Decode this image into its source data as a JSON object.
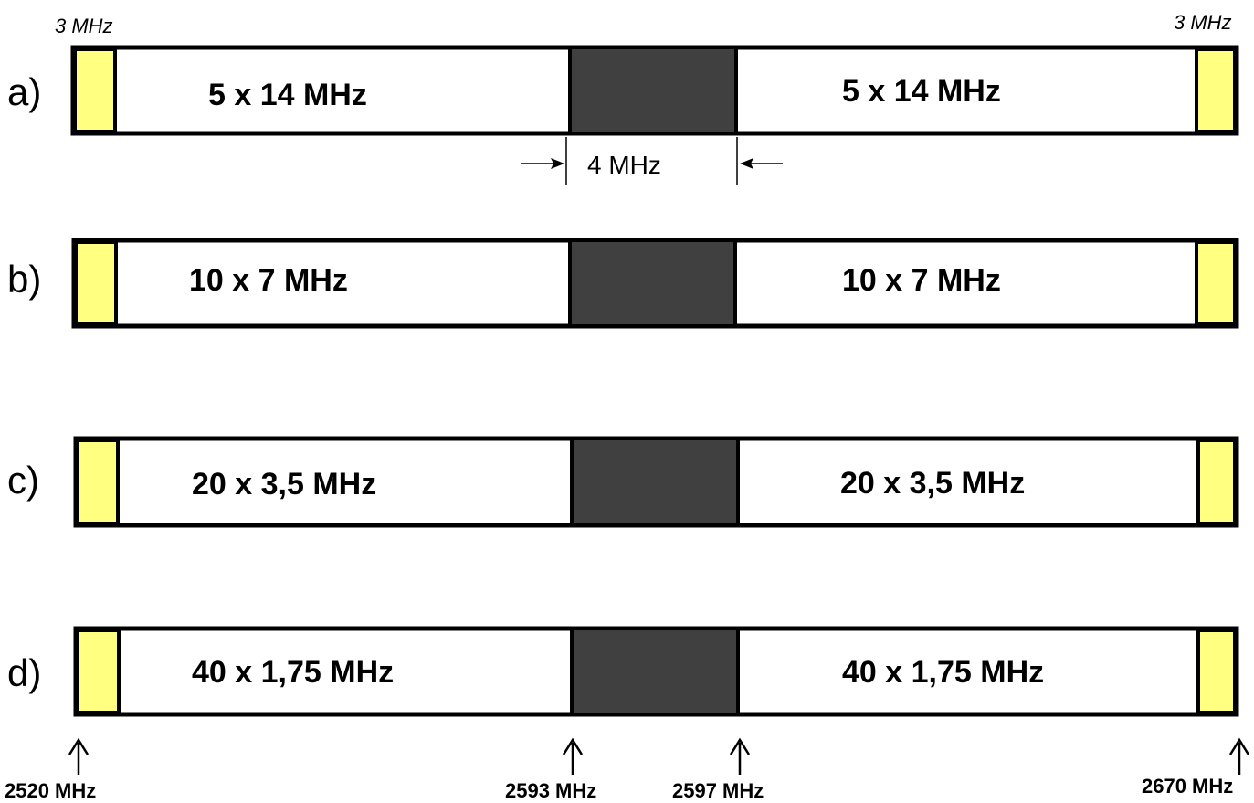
{
  "colors": {
    "guard_band": "#ffff80",
    "center_gap": "#404040",
    "channel_block": "#ffffff",
    "outline": "#000000"
  },
  "annotations": {
    "guard_left": "3 MHz",
    "guard_right": "3 MHz",
    "gap_width": "4  MHz"
  },
  "rows": [
    {
      "letter": "a)",
      "left_label": "5 x 14 MHz",
      "right_label": "5 x 14 MHz"
    },
    {
      "letter": "b)",
      "left_label": "10 x 7 MHz",
      "right_label": "10 x 7 MHz"
    },
    {
      "letter": "c)",
      "left_label": "20 x 3,5 MHz",
      "right_label": "20 x 3,5 MHz"
    },
    {
      "letter": "d)",
      "left_label": "40 x 1,75 MHz",
      "right_label": "40 x 1,75 MHz"
    }
  ],
  "frequency_marks": [
    {
      "label": "2520 MHz"
    },
    {
      "label": "2593 MHz"
    },
    {
      "label": "2597 MHz"
    },
    {
      "label": "2670 MHz"
    }
  ]
}
